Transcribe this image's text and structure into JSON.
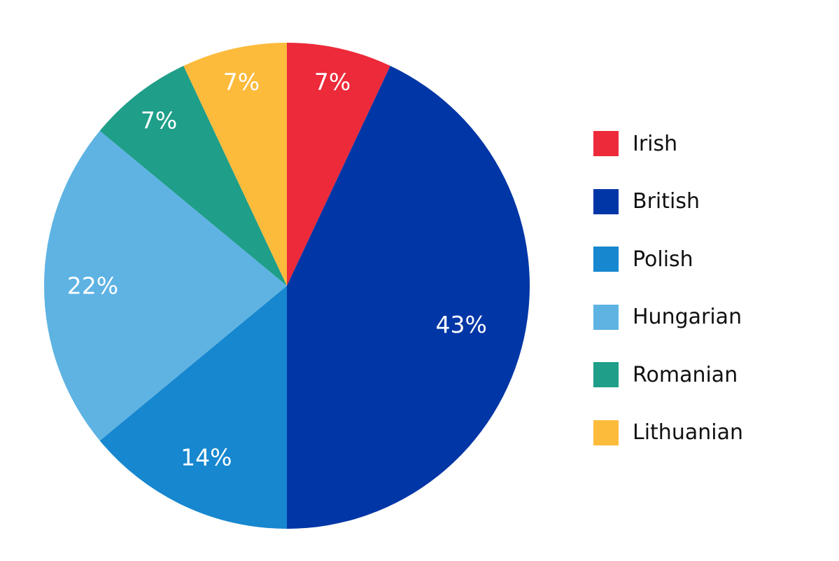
{
  "chart_data": {
    "type": "pie",
    "categories": [
      "Irish",
      "British",
      "Polish",
      "Hungarian",
      "Romanian",
      "Lithuanian"
    ],
    "values": [
      7,
      43,
      14,
      22,
      7,
      7
    ],
    "labels": [
      "7%",
      "43%",
      "14%",
      "22%",
      "7%",
      "7%"
    ],
    "colors": [
      "#EC2A3A",
      "#0036A6",
      "#1787CF",
      "#5EB3E3",
      "#1F9E89",
      "#FDBB3C"
    ],
    "start_angle_deg": 0,
    "direction": "clockwise",
    "legend": {
      "position": "right",
      "items": [
        {
          "label": "Irish",
          "color": "#EC2A3A"
        },
        {
          "label": "British",
          "color": "#0036A6"
        },
        {
          "label": "Polish",
          "color": "#1787CF"
        },
        {
          "label": "Hungarian",
          "color": "#5EB3E3"
        },
        {
          "label": "Romanian",
          "color": "#1F9E89"
        },
        {
          "label": "Lithuanian",
          "color": "#FDBB3C"
        }
      ]
    }
  }
}
